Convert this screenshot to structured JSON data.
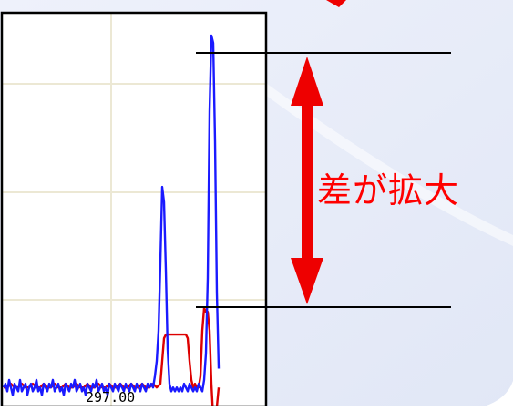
{
  "annotation": {
    "text": "差が拡大",
    "color": "#ff0000"
  },
  "chart_data": {
    "type": "line",
    "x_tick_labels": [
      "297.00"
    ],
    "grid": true,
    "series": [
      {
        "color": "#1a1aff",
        "x": [
          0,
          2,
          4,
          6,
          8,
          10,
          12,
          14,
          16,
          18,
          20,
          22,
          24,
          26,
          28,
          30,
          32,
          34,
          36,
          38,
          40,
          42,
          44,
          46,
          48,
          50,
          52,
          54,
          56,
          58,
          60,
          62,
          64,
          66,
          68,
          70,
          72,
          74,
          76,
          78,
          80,
          82,
          84,
          86,
          88,
          90,
          92,
          94,
          96,
          98,
          100,
          102,
          104,
          106,
          108,
          110,
          112,
          114,
          116,
          118,
          120,
          122,
          124,
          126,
          128,
          130,
          132,
          134,
          136,
          138,
          140,
          142,
          144,
          146,
          148,
          150,
          152,
          154,
          156,
          158,
          160,
          162,
          164,
          166,
          168,
          170,
          172,
          174,
          176,
          178,
          180,
          182,
          184,
          186,
          188,
          190,
          192,
          194,
          196,
          198,
          200,
          202,
          204,
          206,
          208,
          210,
          212,
          214,
          216,
          218,
          220,
          222,
          224,
          226,
          228,
          230,
          232,
          234,
          236
        ],
        "y": [
          0.05,
          0.06,
          0.04,
          0.07,
          0.05,
          0.03,
          0.06,
          0.05,
          0.04,
          0.07,
          0.04,
          0.05,
          0.06,
          0.03,
          0.05,
          0.06,
          0.04,
          0.05,
          0.07,
          0.04,
          0.05,
          0.03,
          0.06,
          0.05,
          0.04,
          0.06,
          0.05,
          0.07,
          0.04,
          0.05,
          0.06,
          0.04,
          0.05,
          0.03,
          0.06,
          0.05,
          0.04,
          0.06,
          0.05,
          0.07,
          0.04,
          0.05,
          0.06,
          0.04,
          0.05,
          0.03,
          0.06,
          0.05,
          0.04,
          0.06,
          0.05,
          0.07,
          0.04,
          0.05,
          0.06,
          0.04,
          0.05,
          0.03,
          0.06,
          0.05,
          0.04,
          0.06,
          0.05,
          0.04,
          0.06,
          0.05,
          0.04,
          0.06,
          0.05,
          0.04,
          0.06,
          0.05,
          0.04,
          0.06,
          0.05,
          0.04,
          0.06,
          0.05,
          0.04,
          0.06,
          0.05,
          0.06,
          0.05,
          0.08,
          0.12,
          0.2,
          0.38,
          0.58,
          0.54,
          0.36,
          0.15,
          0.06,
          0.04,
          0.05,
          0.04,
          0.05,
          0.04,
          0.05,
          0.04,
          0.06,
          0.05,
          0.04,
          0.06,
          0.05,
          0.04,
          0.05,
          0.04,
          0.06,
          0.05,
          0.04,
          0.07,
          0.14,
          0.34,
          0.78,
          0.98,
          0.96,
          0.7,
          0.3,
          0.1
        ]
      },
      {
        "color": "#dd0000",
        "x": [
          0,
          4,
          8,
          12,
          16,
          20,
          24,
          28,
          32,
          36,
          40,
          44,
          48,
          52,
          56,
          60,
          64,
          68,
          72,
          76,
          80,
          84,
          88,
          92,
          96,
          100,
          104,
          108,
          112,
          116,
          120,
          124,
          128,
          132,
          136,
          140,
          144,
          148,
          152,
          156,
          160,
          164,
          168,
          172,
          174,
          176,
          178,
          180,
          182,
          184,
          186,
          188,
          190,
          192,
          194,
          196,
          198,
          200,
          202,
          204,
          206,
          208,
          210,
          212,
          214,
          216,
          218,
          220,
          222,
          224,
          226,
          228,
          230,
          232,
          234,
          236
        ],
        "y": [
          0.05,
          0.05,
          0.06,
          0.05,
          0.05,
          0.06,
          0.05,
          0.05,
          0.06,
          0.05,
          0.05,
          0.06,
          0.05,
          0.05,
          0.06,
          0.05,
          0.05,
          0.06,
          0.05,
          0.05,
          0.06,
          0.05,
          0.05,
          0.06,
          0.05,
          0.05,
          0.06,
          0.05,
          0.05,
          0.06,
          0.05,
          0.05,
          0.06,
          0.05,
          0.05,
          0.06,
          0.05,
          0.05,
          0.06,
          0.05,
          0.05,
          0.06,
          0.05,
          0.06,
          0.12,
          0.18,
          0.19,
          0.19,
          0.19,
          0.19,
          0.19,
          0.19,
          0.19,
          0.19,
          0.19,
          0.19,
          0.19,
          0.19,
          0.18,
          0.12,
          0.07,
          0.05,
          0.06,
          0.05,
          0.05,
          0.08,
          0.2,
          0.26,
          0.25,
          0.25,
          0.2,
          0.06,
          -0.03,
          -0.05,
          0.0,
          0.05
        ]
      }
    ]
  }
}
